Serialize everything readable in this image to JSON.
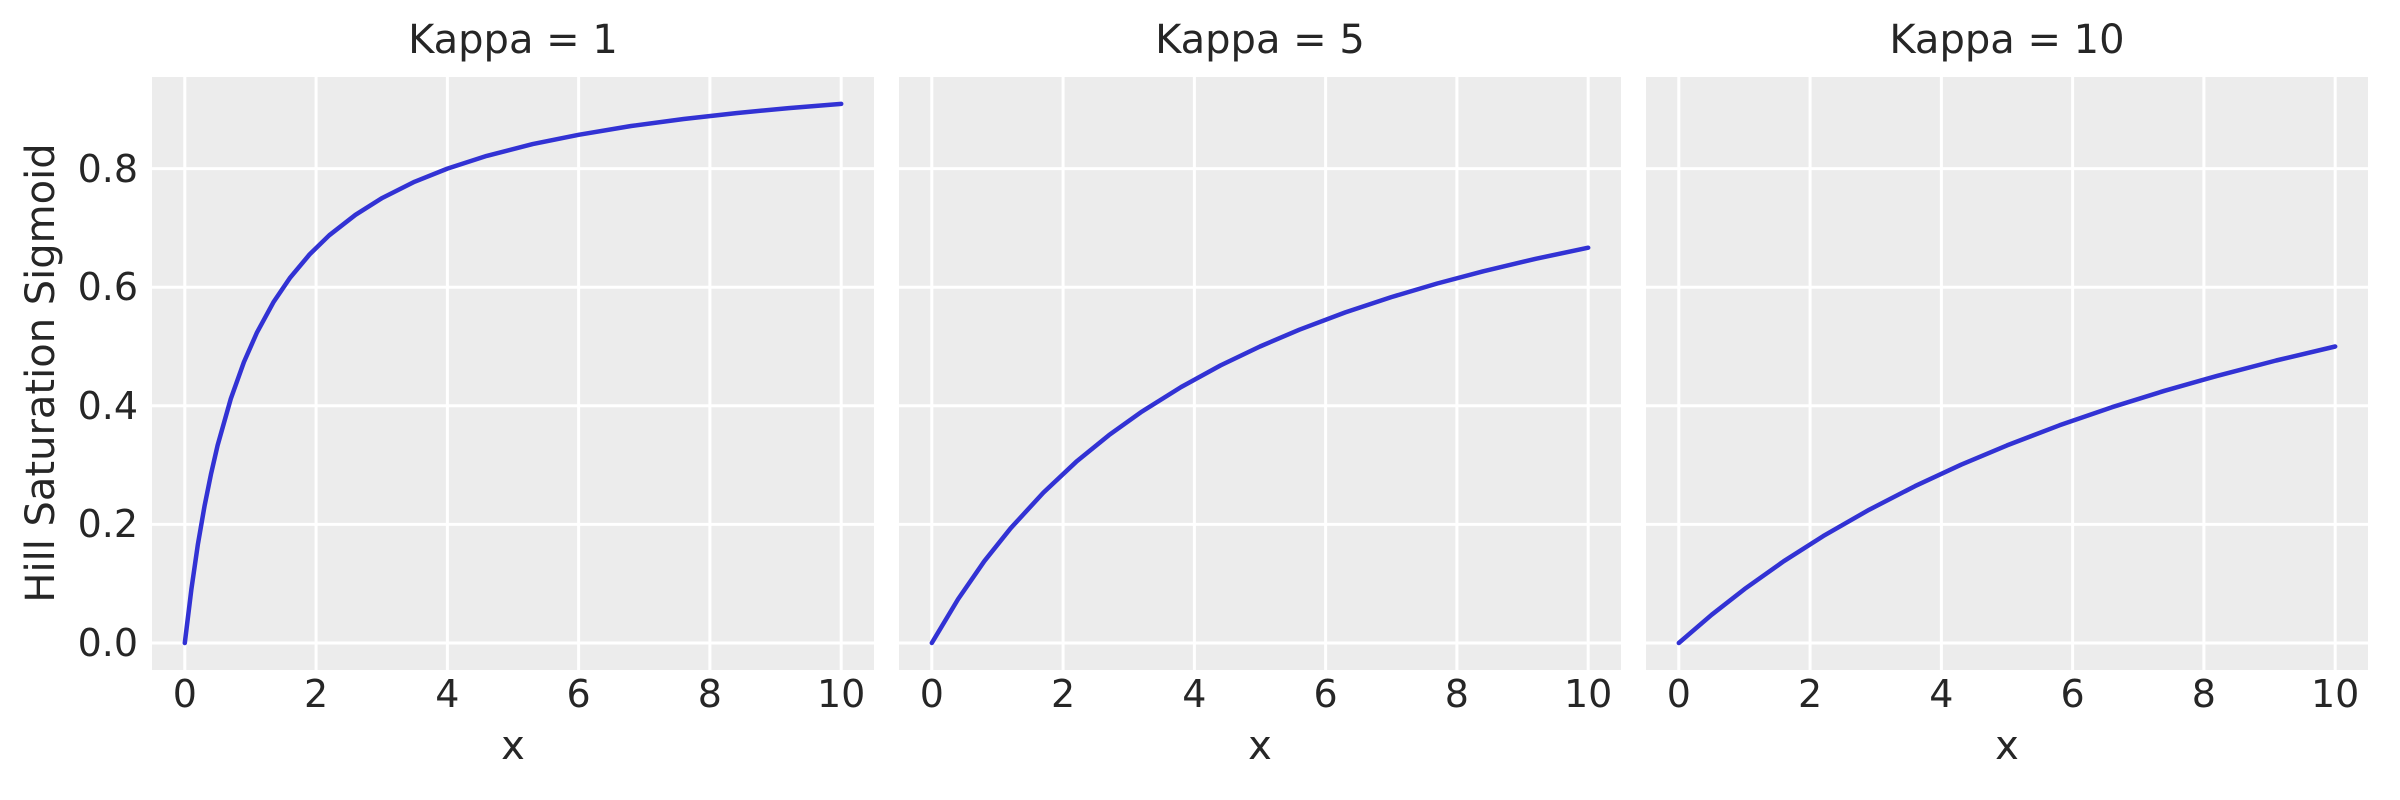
{
  "colors": {
    "figure_background": "#ffffff",
    "axes_background": "#ececec",
    "grid": "#ffffff",
    "text": "#262626",
    "curve": "#3232d4"
  },
  "chart_data": {
    "type": "line",
    "xlabel": "x",
    "ylabel": "Hill Saturation Sigmoid",
    "x_ticks": [
      0,
      2,
      4,
      6,
      8,
      10
    ],
    "y_ticks": [
      0,
      0.2,
      0.4,
      0.6,
      0.8
    ],
    "x_tick_labels": [
      "0",
      "2",
      "4",
      "6",
      "8",
      "10"
    ],
    "y_tick_labels": [
      "0.0",
      "0.2",
      "0.4",
      "0.6",
      "0.8"
    ],
    "xlim": [
      -0.5,
      10.5
    ],
    "ylim": [
      -0.0455,
      0.9545
    ],
    "grid": true,
    "legend": false,
    "shared_y_axis": true,
    "subplots": [
      {
        "title": "Kappa = 1",
        "kappa": 1,
        "x": [
          0,
          0.1,
          0.2,
          0.3,
          0.4,
          0.5,
          0.7,
          0.9,
          1.1,
          1.35,
          1.6,
          1.9,
          2.2,
          2.6,
          3,
          3.5,
          4,
          4.6,
          5.3,
          6,
          6.8,
          7.6,
          8.4,
          9.2,
          10
        ],
        "y": [
          0,
          0.0909,
          0.1667,
          0.2308,
          0.2857,
          0.3333,
          0.4118,
          0.4737,
          0.5238,
          0.5745,
          0.6154,
          0.6552,
          0.6875,
          0.7222,
          0.75,
          0.7778,
          0.8,
          0.8214,
          0.8413,
          0.8571,
          0.8718,
          0.8837,
          0.8936,
          0.902,
          0.9091
        ]
      },
      {
        "title": "Kappa = 5",
        "kappa": 5,
        "x": [
          0,
          0.4,
          0.8,
          1.2,
          1.7,
          2.2,
          2.7,
          3.2,
          3.8,
          4.4,
          5,
          5.6,
          6.3,
          7,
          7.7,
          8.4,
          9.2,
          10
        ],
        "y": [
          0,
          0.0741,
          0.1379,
          0.1935,
          0.2537,
          0.3056,
          0.3506,
          0.3902,
          0.4318,
          0.4681,
          0.5,
          0.5283,
          0.5575,
          0.5833,
          0.6063,
          0.6269,
          0.6479,
          0.6667
        ]
      },
      {
        "title": "Kappa = 10",
        "kappa": 10,
        "x": [
          0,
          0.5,
          1,
          1.6,
          2.2,
          2.9,
          3.6,
          4.3,
          5,
          5.8,
          6.6,
          7.4,
          8.2,
          9.1,
          10
        ],
        "y": [
          0,
          0.0476,
          0.0909,
          0.1379,
          0.1803,
          0.2248,
          0.2647,
          0.3007,
          0.3333,
          0.3671,
          0.3976,
          0.4253,
          0.4505,
          0.4764,
          0.5
        ]
      }
    ]
  }
}
